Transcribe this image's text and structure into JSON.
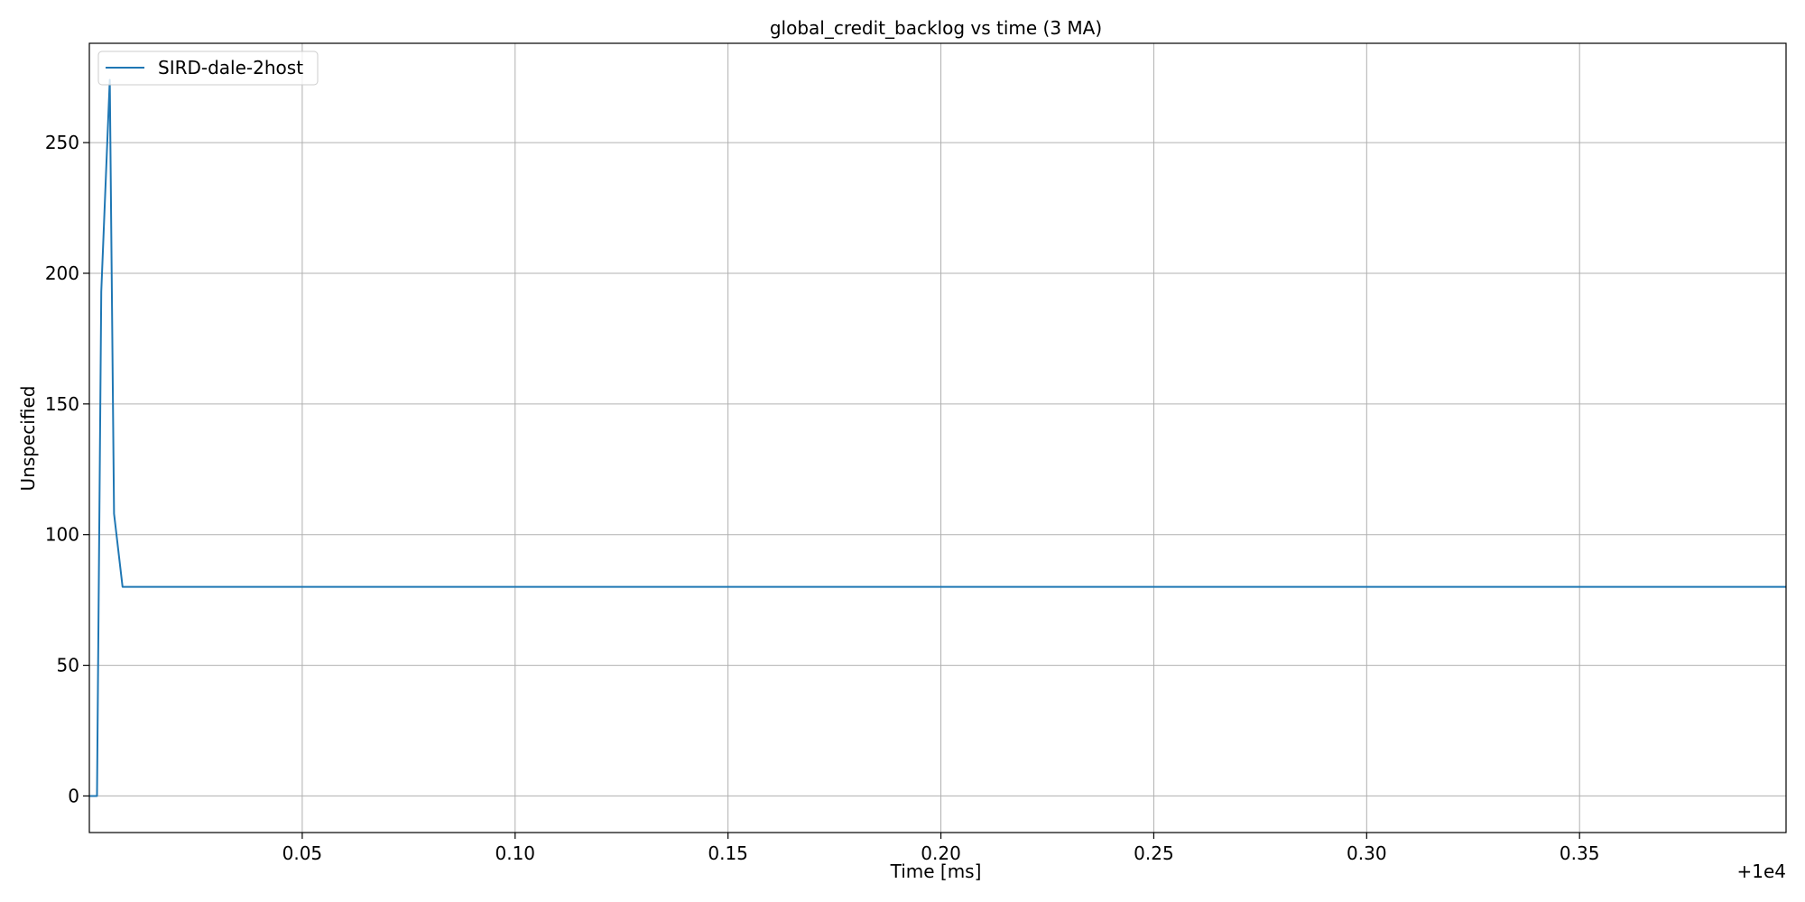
{
  "chart_data": {
    "type": "line",
    "title": "global_credit_backlog vs time (3 MA)",
    "xlabel": "Time [ms]",
    "ylabel": "Unspecified",
    "x_offset_label": "+1e4",
    "xlim": [
      0.0,
      0.3985
    ],
    "ylim": [
      -14,
      288
    ],
    "x_ticks": [
      0.05,
      0.1,
      0.15,
      0.2,
      0.25,
      0.3,
      0.35
    ],
    "x_tick_labels": [
      "0.05",
      "0.10",
      "0.15",
      "0.20",
      "0.25",
      "0.30",
      "0.35"
    ],
    "y_ticks": [
      0,
      50,
      100,
      150,
      200,
      250
    ],
    "y_tick_labels": [
      "0",
      "50",
      "100",
      "150",
      "200",
      "250"
    ],
    "grid": true,
    "legend_position": "upper-left",
    "series": [
      {
        "name": "SIRD-dale-2host",
        "color": "#1f77b4",
        "x": [
          0.0,
          0.0018,
          0.0028,
          0.0048,
          0.0058,
          0.0078,
          0.3985
        ],
        "y": [
          0,
          0,
          193,
          274,
          108,
          80,
          80
        ]
      }
    ]
  }
}
